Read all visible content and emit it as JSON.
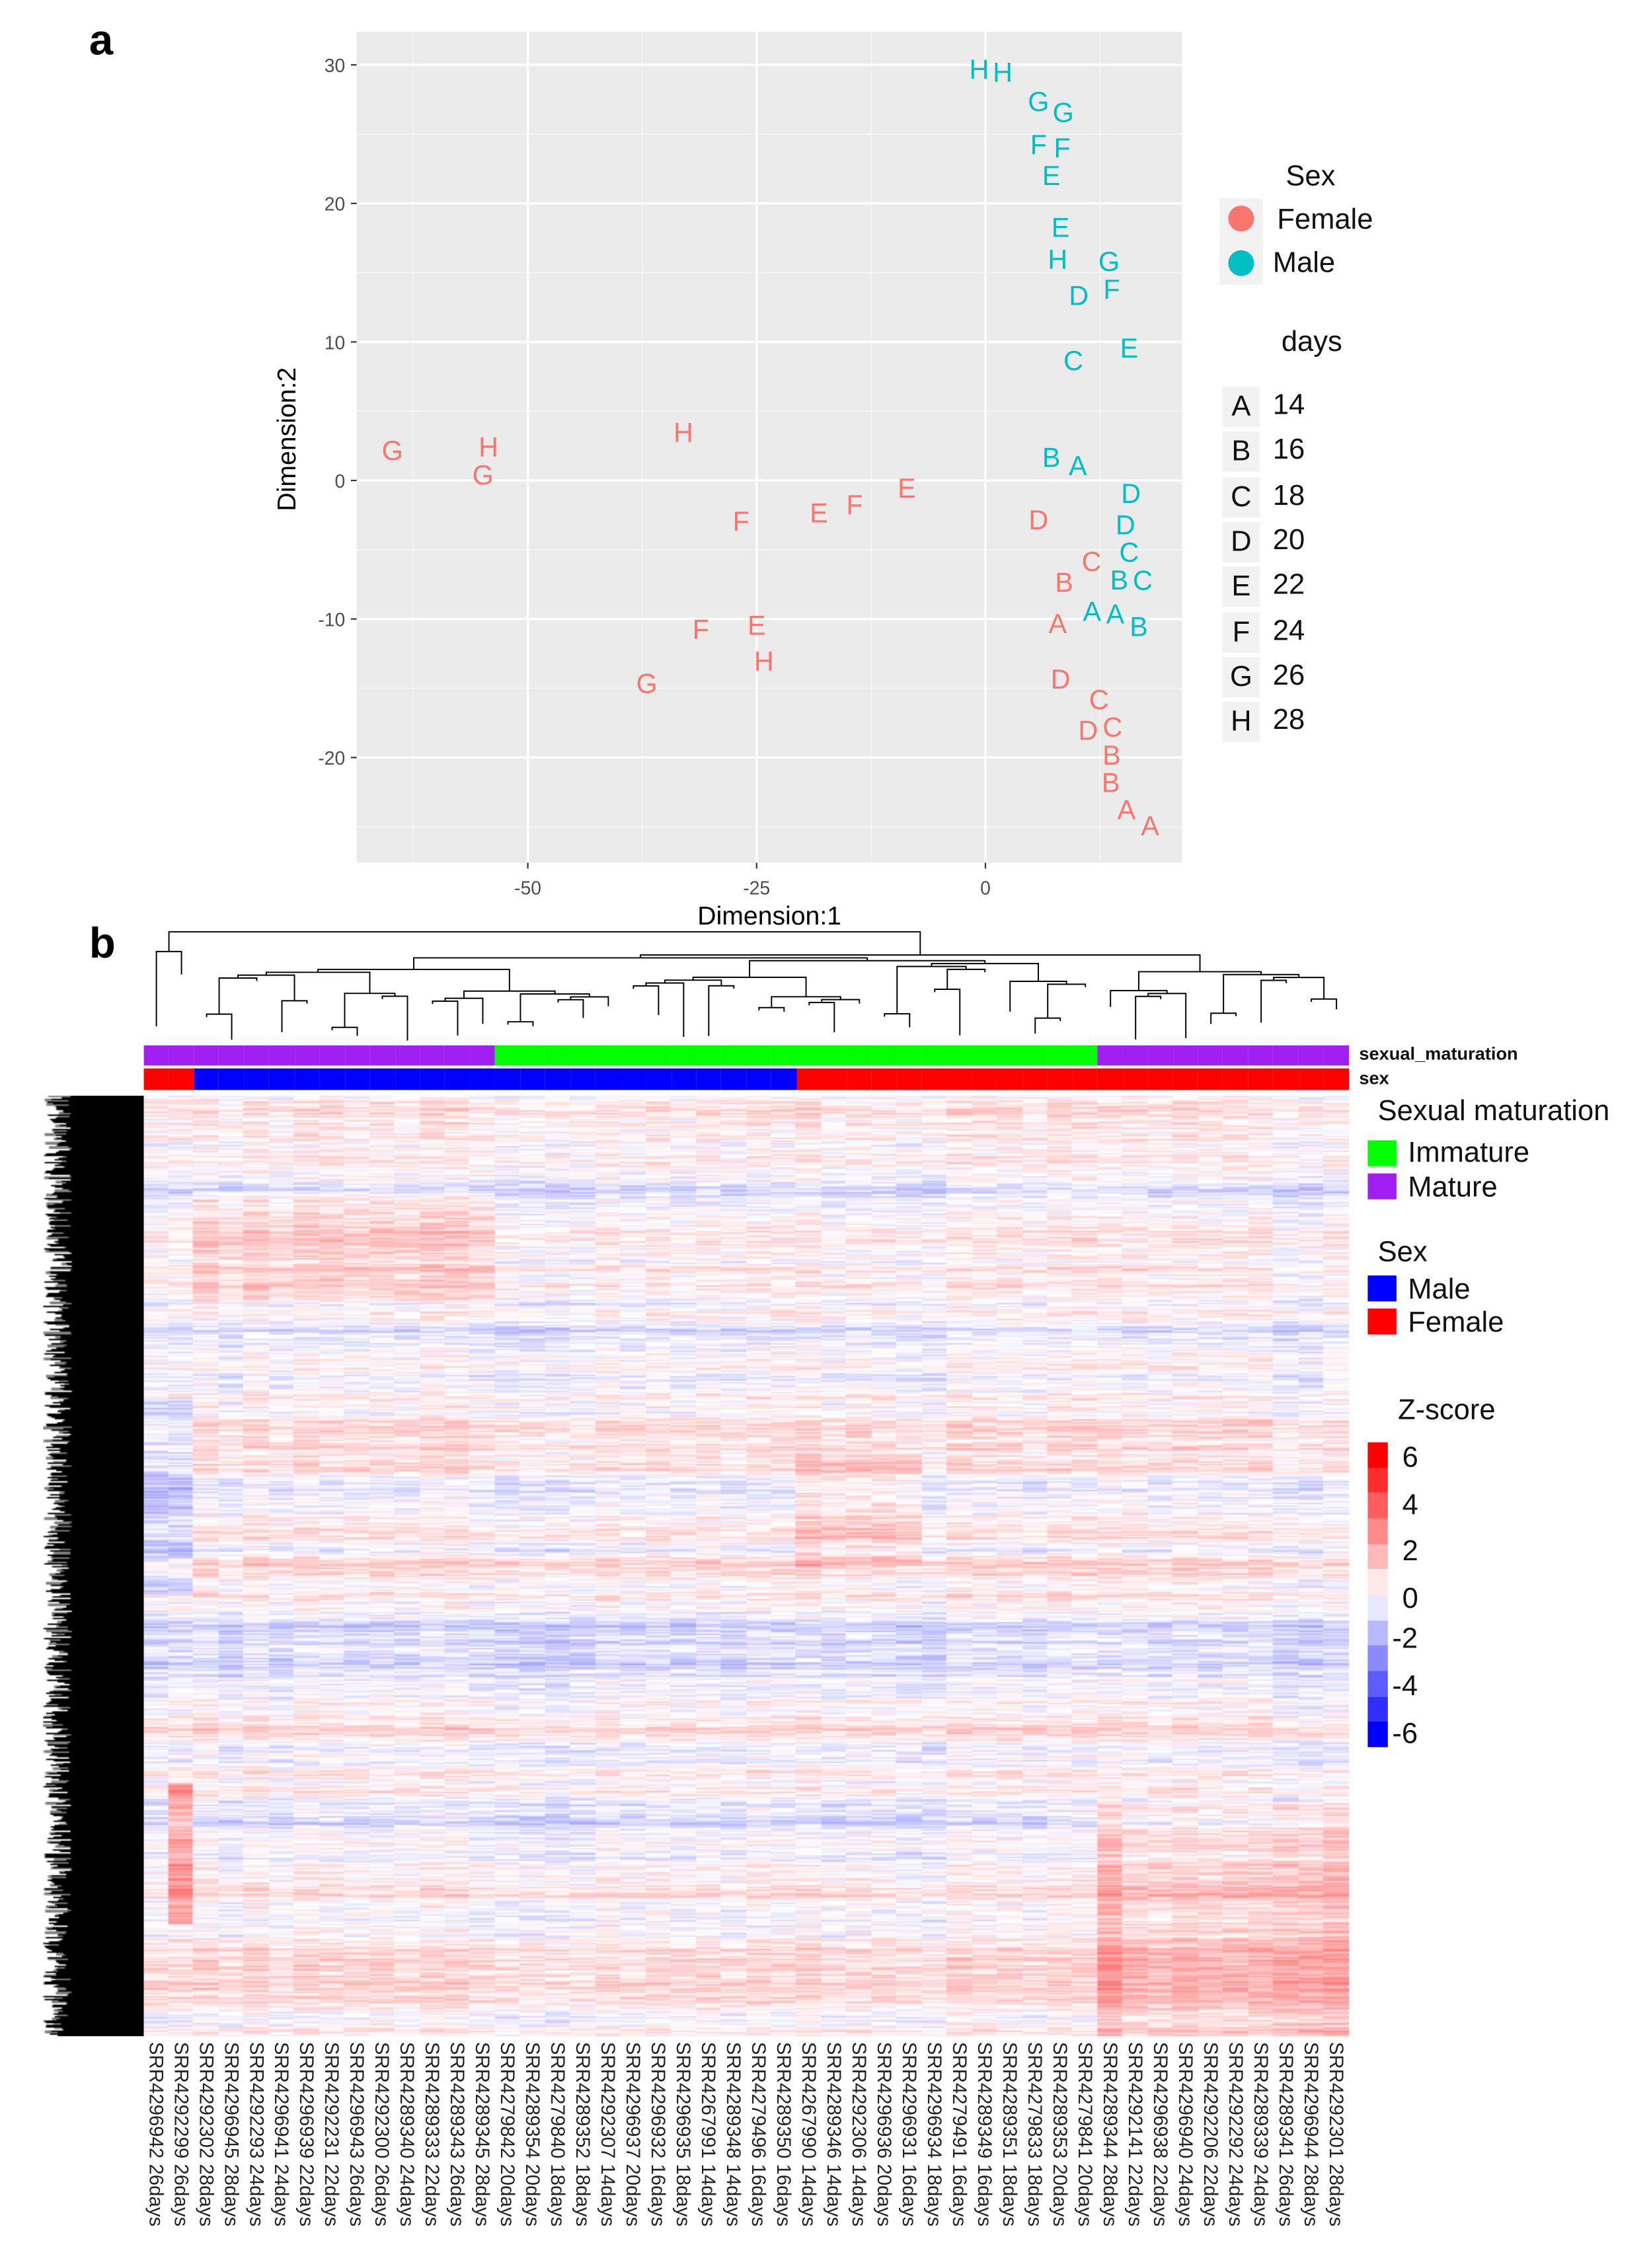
{
  "panel_a_letter": "a",
  "panel_b_letter": "b",
  "chart_data": [
    {
      "type": "scatter",
      "xlabel": "Dimension:1",
      "ylabel": "Dimension:2",
      "xlim": [
        -68.7,
        21.5
      ],
      "ylim": [
        -27.6,
        32.4
      ],
      "xticks": [
        -50,
        -25,
        0
      ],
      "yticks": [
        30,
        20,
        10,
        0,
        -10,
        -20
      ],
      "grid": true,
      "legend": {
        "placement": "right",
        "sex_title": "Sex",
        "sex_items": [
          {
            "label": "Female",
            "color": "#F8766D"
          },
          {
            "label": "Male",
            "color": "#00BFC4"
          }
        ],
        "days_title": "days",
        "days_items": [
          {
            "key": "A",
            "label": "14"
          },
          {
            "key": "B",
            "label": "16"
          },
          {
            "key": "C",
            "label": "18"
          },
          {
            "key": "D",
            "label": "20"
          },
          {
            "key": "E",
            "label": "22"
          },
          {
            "key": "F",
            "label": "24"
          },
          {
            "key": "G",
            "label": "26"
          },
          {
            "key": "H",
            "label": "28"
          }
        ]
      },
      "series": [
        {
          "name": "Male",
          "color": "#00BFC4",
          "points": [
            {
              "label": "H",
              "x": -0.2,
              "y": 29.7
            },
            {
              "label": "H",
              "x": 1.4,
              "y": 29.5
            },
            {
              "label": "G",
              "x": 5.8,
              "y": 27.4
            },
            {
              "label": "G",
              "x": 8.5,
              "y": 26.6
            },
            {
              "label": "F",
              "x": 6.0,
              "y": 24.3
            },
            {
              "label": "F",
              "x": 8.2,
              "y": 24.0
            },
            {
              "label": "E",
              "x": 7.2,
              "y": 22.1
            },
            {
              "label": "E",
              "x": 8.2,
              "y": 18.3
            },
            {
              "label": "H",
              "x": 7.9,
              "y": 16.0
            },
            {
              "label": "G",
              "x": 13.5,
              "y": 15.4
            },
            {
              "label": "F",
              "x": 13.8,
              "y": 14.3
            },
            {
              "label": "D",
              "x": 10.2,
              "y": 13.4
            },
            {
              "label": "E",
              "x": 15.7,
              "y": 9.6
            },
            {
              "label": "C",
              "x": 9.6,
              "y": 8.7
            },
            {
              "label": "B",
              "x": 7.2,
              "y": 1.7
            },
            {
              "label": "A",
              "x": 10.1,
              "y": 1.1
            },
            {
              "label": "D",
              "x": 15.9,
              "y": -0.9
            },
            {
              "label": "D",
              "x": 15.3,
              "y": -3.2
            },
            {
              "label": "C",
              "x": 15.7,
              "y": -5.7
            },
            {
              "label": "C",
              "x": 16.7,
              "y": -6.6
            },
            {
              "label": "B",
              "x": 15.1,
              "y": -7.1
            },
            {
              "label": "A",
              "x": 12.4,
              "y": -9.4
            },
            {
              "label": "A",
              "x": 14.3,
              "y": -9.6
            },
            {
              "label": "B",
              "x": 15.9,
              "y": -10.5
            }
          ]
        },
        {
          "name": "Female",
          "color": "#F8766D",
          "points": [
            {
              "label": "G",
              "x": -64.8,
              "y": 2.2
            },
            {
              "label": "H",
              "x": -54.3,
              "y": 2.2
            },
            {
              "label": "G",
              "x": -54.9,
              "y": 0.7
            },
            {
              "label": "H",
              "x": -33.0,
              "y": 3.5
            },
            {
              "label": "E",
              "x": -8.6,
              "y": -0.5
            },
            {
              "label": "F",
              "x": -14.3,
              "y": -1.7
            },
            {
              "label": "E",
              "x": -18.2,
              "y": -2.3
            },
            {
              "label": "F",
              "x": -26.7,
              "y": -2.9
            },
            {
              "label": "D",
              "x": 5.8,
              "y": -2.8
            },
            {
              "label": "C",
              "x": 11.6,
              "y": -5.8
            },
            {
              "label": "B",
              "x": 8.6,
              "y": -7.3
            },
            {
              "label": "A",
              "x": 7.9,
              "y": -10.3
            },
            {
              "label": "F",
              "x": -31.1,
              "y": -10.7
            },
            {
              "label": "E",
              "x": -25.0,
              "y": -10.4
            },
            {
              "label": "H",
              "x": -24.2,
              "y": -13.0
            },
            {
              "label": "G",
              "x": -37.0,
              "y": -14.6
            },
            {
              "label": "D",
              "x": 8.2,
              "y": -14.3
            },
            {
              "label": "C",
              "x": 12.4,
              "y": -16.0
            },
            {
              "label": "D",
              "x": 11.8,
              "y": -18.0
            },
            {
              "label": "C",
              "x": 13.4,
              "y": -17.9
            },
            {
              "label": "B",
              "x": 13.7,
              "y": -20.3
            },
            {
              "label": "B",
              "x": 13.7,
              "y": -20.9
            },
            {
              "label": "A",
              "x": 15.9,
              "y": -23.7
            },
            {
              "label": "A",
              "x": 17.5,
              "y": -24.9
            }
          ]
        }
      ]
    },
    {
      "type": "heatmap",
      "annotation_labels": {
        "maturation": "sexual_maturation",
        "sex": "sex"
      },
      "columns": [
        "SRR4296942 26days",
        "SRR4292299 26days",
        "SRR4292302 28days",
        "SRR4296945 28days",
        "SRR4292293 24days",
        "SRR4296941 24days",
        "SRR4296939 22days",
        "SRR4292231 22days",
        "SRR4296943 26days",
        "SRR4292300 26days",
        "SRR4289340 24days",
        "SRR4289333 22days",
        "SRR4289343 26days",
        "SRR4289345 28days",
        "SRR4279842 20days",
        "SRR4289354 20days",
        "SRR4279840 18days",
        "SRR4289352 18days",
        "SRR4292307 14days",
        "SRR4296937 20days",
        "SRR4296932 16days",
        "SRR4296935 18days",
        "SRR4267991 14days",
        "SRR4289348 14days",
        "SRR4279496 16days",
        "SRR4289350 16days",
        "SRR4267990 14days",
        "SRR4289346 14days",
        "SRR4292306 14days",
        "SRR4296936 20days",
        "SRR4296931 16days",
        "SRR4296934 18days",
        "SRR4279491 16days",
        "SRR4289349 16days",
        "SRR4289351 18days",
        "SRR4279833 18days",
        "SRR4289353 20days",
        "SRR4279841 20days",
        "SRR4289344 28days",
        "SRR4292141 22days",
        "SRR4296938 22days",
        "SRR4296940 24days",
        "SRR4292206 22days",
        "SRR4292292 24days",
        "SRR4289339 24days",
        "SRR4289341 26days",
        "SRR4296944 28days",
        "SRR4292301 28days"
      ],
      "maturation": [
        "Mature",
        "Mature",
        "Mature",
        "Mature",
        "Mature",
        "Mature",
        "Mature",
        "Mature",
        "Mature",
        "Mature",
        "Mature",
        "Mature",
        "Mature",
        "Mature",
        "Immature",
        "Immature",
        "Immature",
        "Immature",
        "Immature",
        "Immature",
        "Immature",
        "Immature",
        "Immature",
        "Immature",
        "Immature",
        "Immature",
        "Immature",
        "Immature",
        "Immature",
        "Immature",
        "Immature",
        "Immature",
        "Immature",
        "Immature",
        "Immature",
        "Immature",
        "Immature",
        "Immature",
        "Mature",
        "Mature",
        "Mature",
        "Mature",
        "Mature",
        "Mature",
        "Mature",
        "Mature",
        "Mature",
        "Mature"
      ],
      "sex": [
        "Female",
        "Female",
        "Male",
        "Male",
        "Male",
        "Male",
        "Male",
        "Male",
        "Male",
        "Male",
        "Male",
        "Male",
        "Male",
        "Male",
        "Male",
        "Male",
        "Male",
        "Male",
        "Male",
        "Male",
        "Male",
        "Male",
        "Male",
        "Male",
        "Male",
        "Male",
        "Female",
        "Female",
        "Female",
        "Female",
        "Female",
        "Female",
        "Female",
        "Female",
        "Female",
        "Female",
        "Female",
        "Female",
        "Female",
        "Female",
        "Female",
        "Female",
        "Female",
        "Female",
        "Female",
        "Female",
        "Female",
        "Female"
      ],
      "legend": {
        "maturation_title": "Sexual maturation",
        "maturation_items": [
          {
            "label": "Immature",
            "color": "#00FF00"
          },
          {
            "label": "Mature",
            "color": "#A020F0"
          }
        ],
        "sex_title": "Sex",
        "sex_items": [
          {
            "label": "Male",
            "color": "#0000FF"
          },
          {
            "label": "Female",
            "color": "#FF0000"
          }
        ],
        "zscore_title": "Z-score",
        "zscore_ticks": [
          "6",
          "4",
          "2",
          "0",
          "-2",
          "-4",
          "-6"
        ],
        "zrange": [
          -6,
          6
        ],
        "low_color": "#0000FF",
        "high_color": "#FF0000"
      }
    }
  ]
}
